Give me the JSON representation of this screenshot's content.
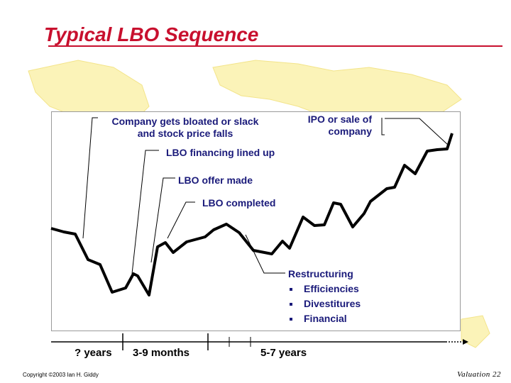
{
  "slide": {
    "title": "Typical LBO Sequence",
    "footer_left": "Copyright ©2003 Ian H. Giddy",
    "footer_right": "Valuation 22"
  },
  "colors": {
    "title": "#c8102e",
    "label_text": "#1a1a7a",
    "watermark": "#fbf3b8",
    "line": "#000000"
  },
  "annotations": {
    "bloated_line1": "Company gets bloated or slack",
    "bloated_line2": "and stock price falls",
    "ipo_line1": "IPO or sale of",
    "ipo_line2": "company",
    "financing": "LBO financing lined up",
    "offer": "LBO offer made",
    "completed": "LBO completed",
    "restructuring": {
      "heading": "Restructuring",
      "items": [
        "Efficiencies",
        "Divestitures",
        "Financial"
      ]
    }
  },
  "timeline": {
    "labels": [
      "? years",
      "3-9 months",
      "5-7 years"
    ]
  }
}
